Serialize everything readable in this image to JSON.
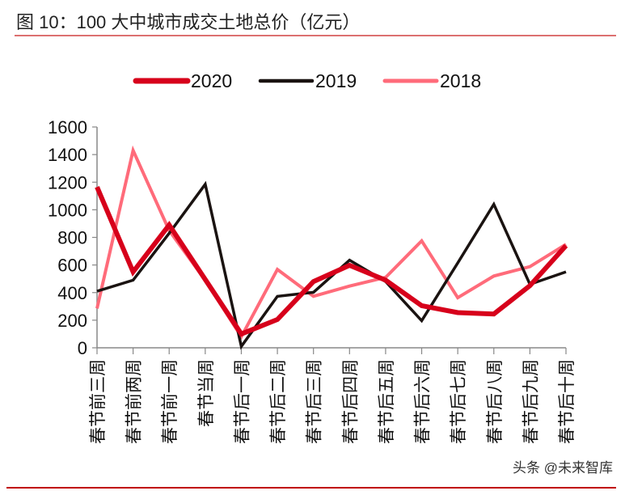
{
  "header": {
    "title": "图 10：100 大中城市成交土地总价（亿元）"
  },
  "watermark": "头条 @未来智库",
  "colors": {
    "accent_line": "#c00000",
    "2020": "#d7001b",
    "2019": "#1a1311",
    "2018": "#ff6b7a",
    "axis": "#888888"
  },
  "chart_data": {
    "type": "line",
    "title": "",
    "xlabel": "",
    "ylabel": "",
    "ylim": [
      0,
      1600
    ],
    "yticks": [
      0,
      200,
      400,
      600,
      800,
      1000,
      1200,
      1400,
      1600
    ],
    "grid": false,
    "legend_position": "top",
    "categories": [
      "春节前三周",
      "春节前两周",
      "春节前一周",
      "春节当周",
      "春节后一周",
      "春节后二周",
      "春节后三周",
      "春节后四周",
      "春节后五周",
      "春节后六周",
      "春节后七周",
      "春节后八周",
      "春节后九周",
      "春节后十周"
    ],
    "series": [
      {
        "name": "2020",
        "color": "#d7001b",
        "values": [
          1165,
          550,
          890,
          495,
          100,
          205,
          480,
          598,
          490,
          305,
          255,
          245,
          450,
          740
        ]
      },
      {
        "name": "2019",
        "color": "#1a1311",
        "values": [
          410,
          490,
          830,
          1185,
          10,
          373,
          402,
          635,
          480,
          196,
          615,
          1040,
          460,
          550
        ]
      },
      {
        "name": "2018",
        "color": "#ff6b7a",
        "values": [
          285,
          1430,
          850,
          490,
          80,
          568,
          373,
          447,
          510,
          775,
          363,
          520,
          588,
          750
        ]
      }
    ]
  }
}
